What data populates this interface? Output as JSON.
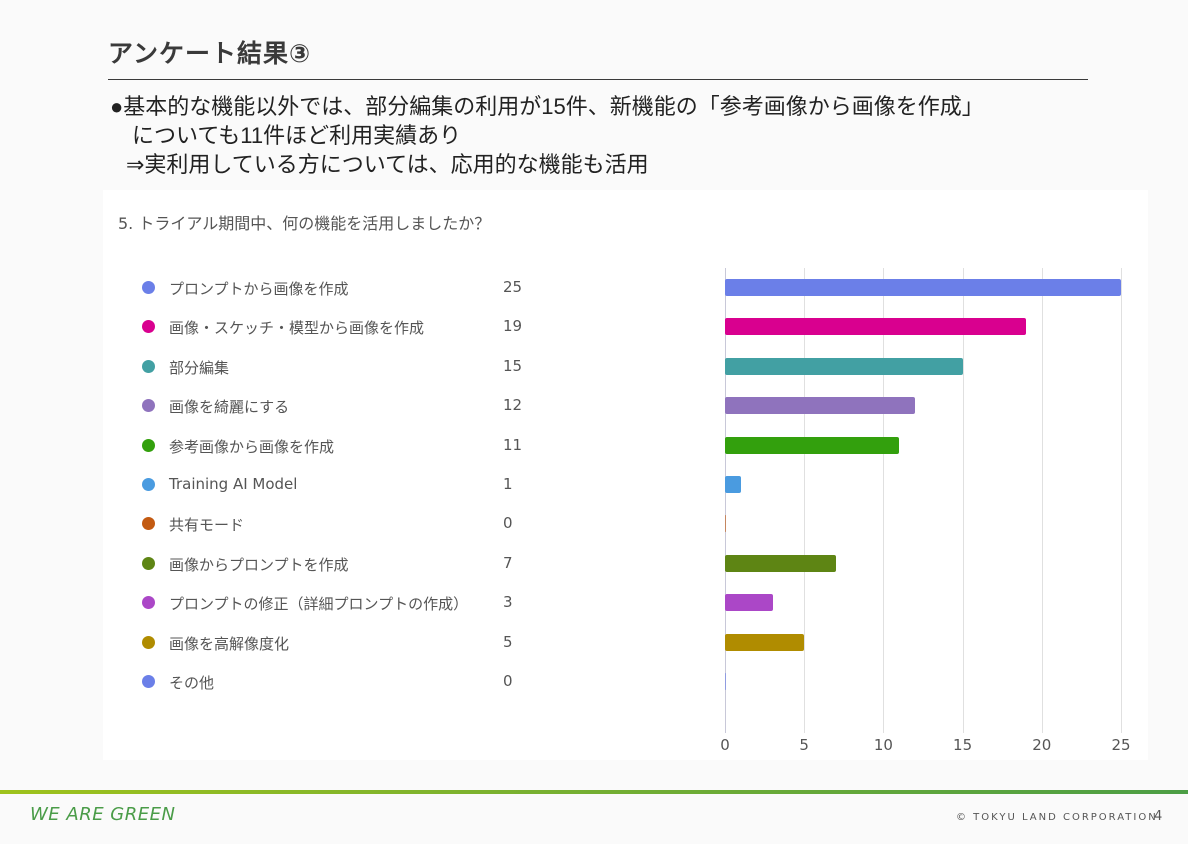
{
  "slide": {
    "title": "アンケート結果③",
    "bullets": [
      "●基本的な機能以外では、部分編集の利用が15件、新機能の「参考画像から画像を作成」",
      "についても11件ほど利用実績あり",
      "⇒実利用している方については、応用的な機能も活用"
    ]
  },
  "chart_data": {
    "type": "bar",
    "orientation": "horizontal",
    "title": "5. トライアル期間中、何の機能を活用しましたか？",
    "xlabel": "",
    "ylabel": "",
    "xlim": [
      0,
      25
    ],
    "x_ticks": [
      "0",
      "5",
      "10",
      "15",
      "20",
      "25"
    ],
    "grid": true,
    "legend_position": "left",
    "categories": [
      "プロンプトから画像を作成",
      "画像・スケッチ・模型から画像を作成",
      "部分編集",
      "画像を綺麗にする",
      "参考画像から画像を作成",
      "Training AI Model",
      "共有モード",
      "画像からプロンプトを作成",
      "プロンプトの修正（詳細プロンプトの作成）",
      "画像を高解像度化",
      "その他"
    ],
    "values": [
      25,
      19,
      15,
      12,
      11,
      1,
      0,
      7,
      3,
      5,
      0
    ],
    "value_labels": [
      "25",
      "19",
      "15",
      "12",
      "11",
      "1",
      "0",
      "7",
      "3",
      "5",
      "0"
    ],
    "colors": [
      "#6b7fe8",
      "#d9008f",
      "#42a0a3",
      "#8f73bd",
      "#33a00d",
      "#4a9be0",
      "#c35a11",
      "#5e8514",
      "#ab47c7",
      "#b08c00",
      "#6b7fe8"
    ]
  },
  "footer": {
    "slogan": "WE ARE GREEN",
    "copyright": "© TOKYU LAND CORPORATION",
    "page_number": "4"
  }
}
